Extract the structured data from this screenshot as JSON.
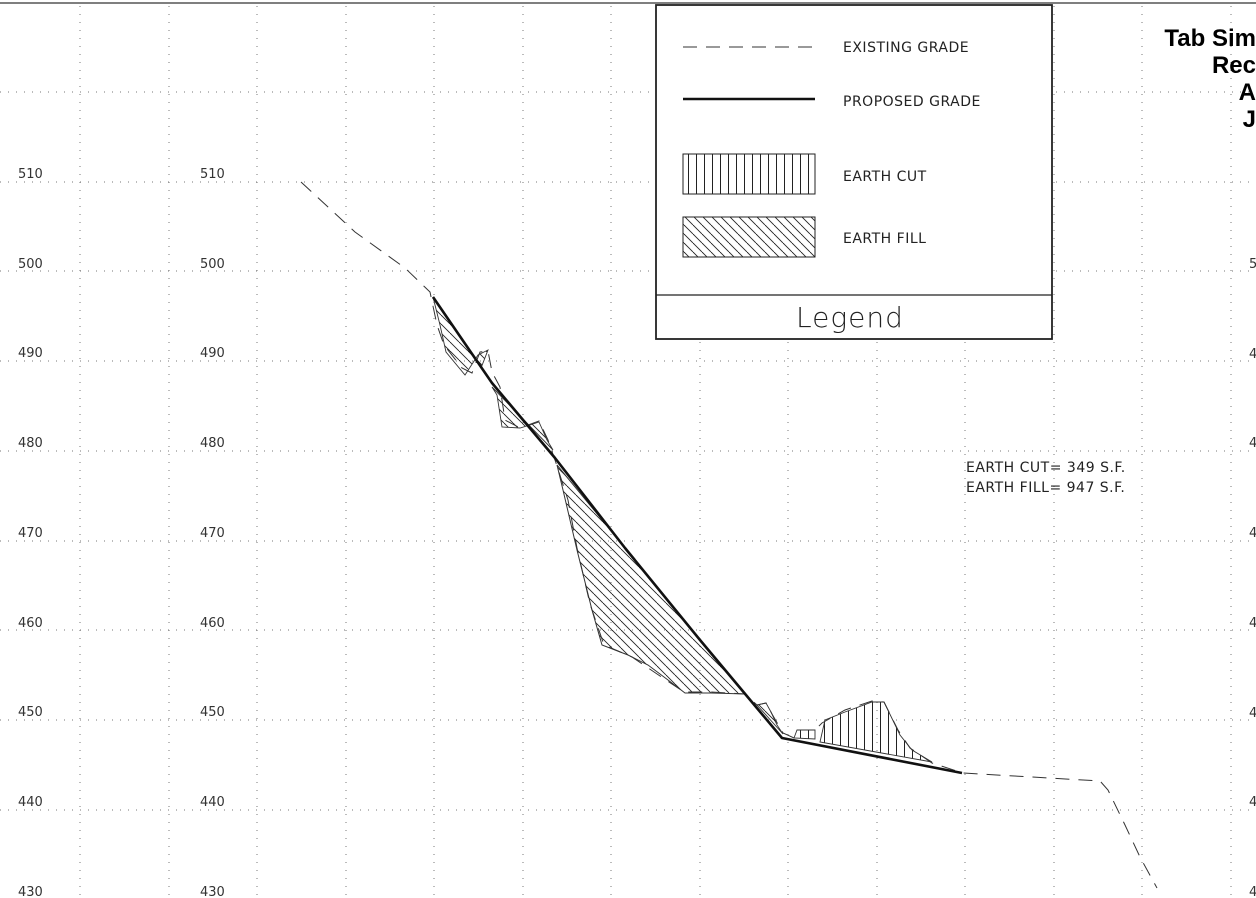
{
  "title_lines": [
    "Tab Sim",
    "Rec",
    "A",
    "J"
  ],
  "elevations": [
    "510",
    "500",
    "490",
    "480",
    "470",
    "460",
    "450",
    "440",
    "430"
  ],
  "right_tick_labels": [
    "5",
    "4",
    "4",
    "4",
    "4",
    "4",
    "4",
    "4"
  ],
  "legend": {
    "items": [
      {
        "key": "existing",
        "label": "EXISTING GRADE"
      },
      {
        "key": "proposed",
        "label": "PROPOSED GRADE"
      },
      {
        "key": "cut",
        "label": "EARTH CUT"
      },
      {
        "key": "fill",
        "label": "EARTH FILL"
      }
    ],
    "title": "Legend"
  },
  "quantities": {
    "cut": "EARTH CUT= 349 S.F.",
    "fill": "EARTH FILL= 947 S.F."
  }
}
